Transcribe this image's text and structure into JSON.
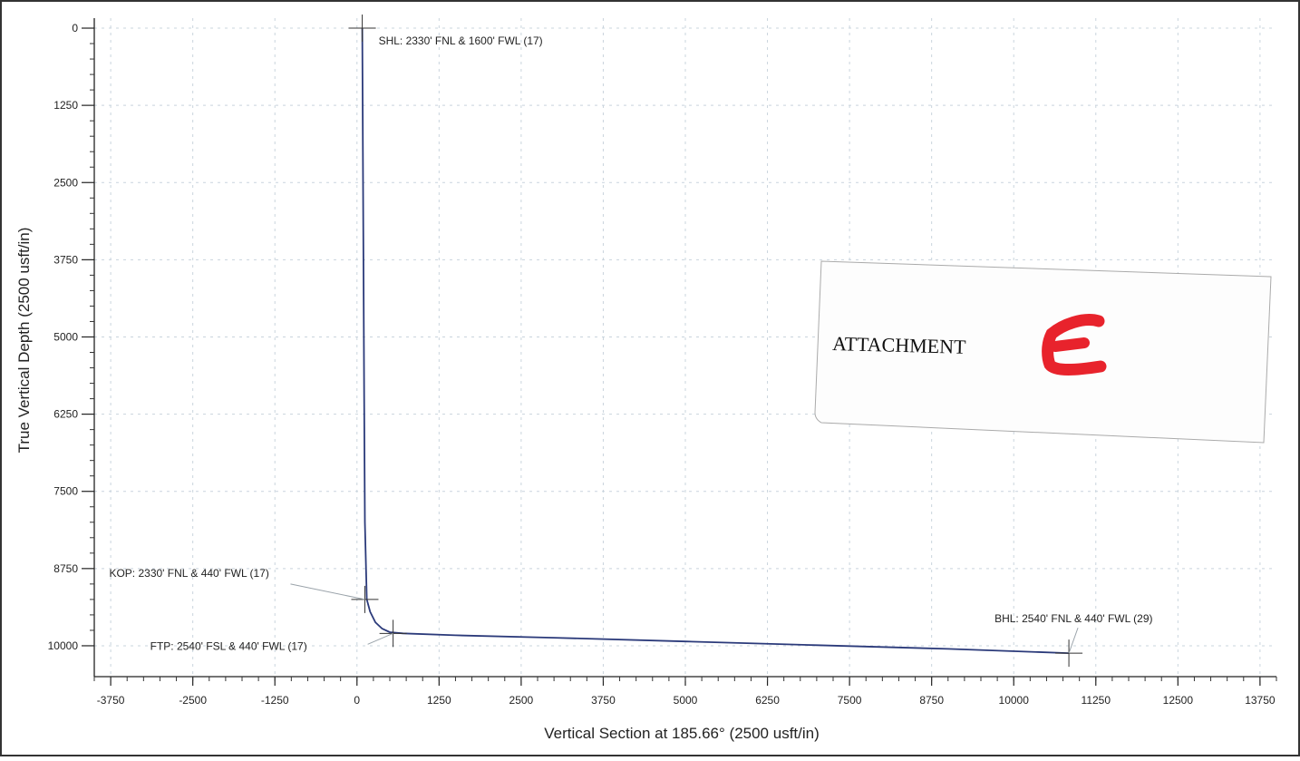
{
  "chart_data": {
    "type": "line",
    "xlabel": "Vertical Section at 185.66° (2500 usft/in)",
    "ylabel": "True Vertical Depth (2500 usft/in)",
    "xlim": [
      -4000,
      14000
    ],
    "ylim": [
      -250,
      10500
    ],
    "y_inverted": true,
    "grid": true,
    "x_ticks": [
      -3750,
      -2500,
      -1250,
      0,
      1250,
      2500,
      3750,
      5000,
      6250,
      7500,
      8750,
      10000,
      11250,
      12500,
      13750
    ],
    "y_ticks": [
      0,
      1250,
      2500,
      3750,
      5000,
      6250,
      7500,
      8750,
      10000
    ],
    "series": [
      {
        "color": "#2b3a7a",
        "x": [
          80,
          90,
          100,
          110,
          120,
          150,
          200,
          280,
          380,
          500,
          700,
          1500,
          3000,
          5000,
          7000,
          9000,
          10840
        ],
        "y": [
          0,
          2000,
          4000,
          6000,
          8000,
          9250,
          9450,
          9620,
          9720,
          9780,
          9800,
          9830,
          9870,
          9930,
          9990,
          10050,
          10120
        ]
      }
    ],
    "annotations": [
      {
        "id": "shl",
        "text": "SHL: 2330' FNL & 1600' FWL (17)",
        "x": 80,
        "y": 0
      },
      {
        "id": "kop",
        "text": "KOP: 2330' FNL & 440' FWL (17)",
        "x": 120,
        "y": 9250
      },
      {
        "id": "ftp",
        "text": "FTP: 2540' FSL & 440' FWL (17)",
        "x": 550,
        "y": 9800
      },
      {
        "id": "bhl",
        "text": "BHL: 2540' FNL & 440' FWL (29)",
        "x": 10840,
        "y": 10120
      }
    ]
  },
  "attachment_note": {
    "text": "ATTACHMENT",
    "letter": "E",
    "letter_color": "#e8232c"
  }
}
